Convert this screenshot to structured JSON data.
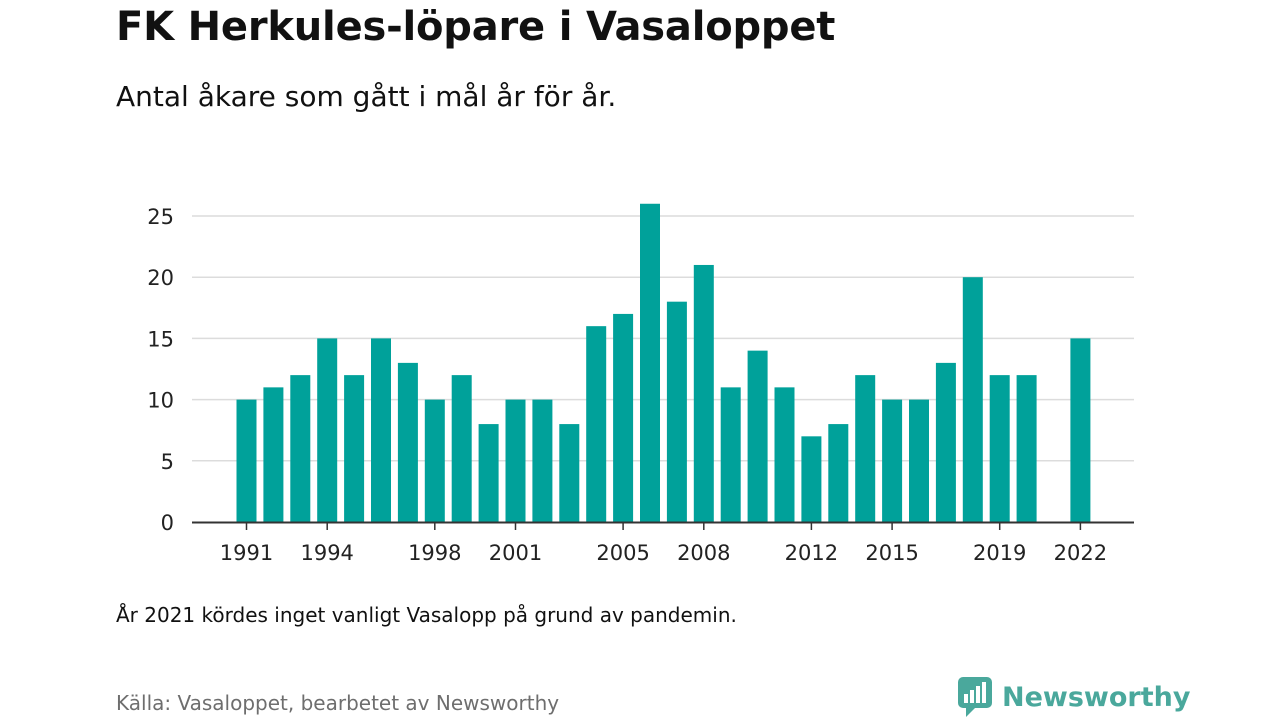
{
  "title": "FK Herkules-löpare i Vasaloppet",
  "subtitle": "Antal åkare som gått i mål år för år.",
  "note": "År 2021 kördes inget vanligt Vasalopp på grund av pandemin.",
  "source": "Källa: Vasaloppet, bearbetet av Newsworthy",
  "brand": {
    "name": "Newsworthy",
    "icon": "newsworthy-logo-icon",
    "color": "#4aa89c"
  },
  "chart_data": {
    "type": "bar",
    "title": "FK Herkules-löpare i Vasaloppet",
    "subtitle": "Antal åkare som gått i mål år för år.",
    "xlabel": "",
    "ylabel": "",
    "ylim": [
      0,
      25
    ],
    "y_ticks": [
      0,
      5,
      10,
      15,
      20,
      25
    ],
    "x_tick_labels": [
      1991,
      1994,
      1998,
      2001,
      2005,
      2008,
      2012,
      2015,
      2019,
      2022
    ],
    "grid": true,
    "bar_color": "#00a19a",
    "categories": [
      1991,
      1992,
      1993,
      1994,
      1995,
      1996,
      1997,
      1998,
      1999,
      2000,
      2001,
      2002,
      2003,
      2004,
      2005,
      2006,
      2007,
      2008,
      2009,
      2010,
      2011,
      2012,
      2013,
      2014,
      2015,
      2016,
      2017,
      2018,
      2019,
      2020,
      2021,
      2022
    ],
    "values": [
      10,
      11,
      12,
      15,
      12,
      15,
      13,
      10,
      12,
      8,
      10,
      10,
      8,
      16,
      17,
      26,
      18,
      21,
      11,
      14,
      11,
      7,
      8,
      12,
      10,
      10,
      13,
      20,
      12,
      12,
      null,
      15
    ]
  }
}
